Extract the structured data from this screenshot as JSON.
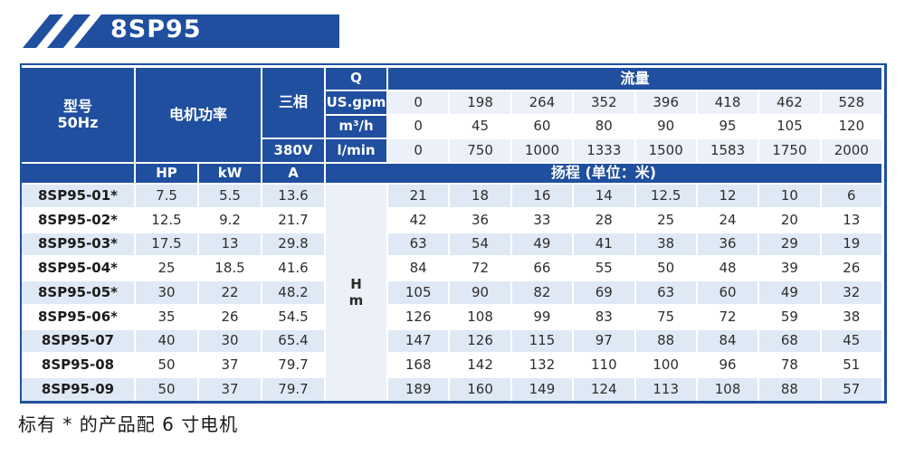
{
  "banner": {
    "title": "8SP95"
  },
  "colors": {
    "primary_blue": "#1f4f9e",
    "light_row": "#dfe9f5",
    "lighter_row": "#ecf1f9",
    "text_dark": "#2e2e2e"
  },
  "table": {
    "header": {
      "model_label": "型号",
      "model_freq": "50Hz",
      "motor_power_label": "电机功率",
      "three_phase_label": "三相",
      "voltage_label": "380V",
      "q_label": "Q",
      "flow_label": "流量",
      "flow_units": [
        "US.gpm",
        "m³/h",
        "l/min"
      ],
      "flow_rows": [
        [
          "0",
          "198",
          "264",
          "352",
          "396",
          "418",
          "462",
          "528"
        ],
        [
          "0",
          "45",
          "60",
          "80",
          "90",
          "95",
          "105",
          "120"
        ],
        [
          "0",
          "750",
          "1000",
          "1333",
          "1500",
          "1583",
          "1750",
          "2000"
        ]
      ],
      "hp_label": "HP",
      "kw_label": "kW",
      "amp_label": "A",
      "head_label": "扬程 (单位：米)"
    },
    "h_column": {
      "line1": "H",
      "line2": "m"
    },
    "rows": [
      {
        "model": "8SP95-01*",
        "hp": "7.5",
        "kw": "5.5",
        "a": "13.6",
        "head": [
          "21",
          "18",
          "16",
          "14",
          "12.5",
          "12",
          "10",
          "6"
        ]
      },
      {
        "model": "8SP95-02*",
        "hp": "12.5",
        "kw": "9.2",
        "a": "21.7",
        "head": [
          "42",
          "36",
          "33",
          "28",
          "25",
          "24",
          "20",
          "13"
        ]
      },
      {
        "model": "8SP95-03*",
        "hp": "17.5",
        "kw": "13",
        "a": "29.8",
        "head": [
          "63",
          "54",
          "49",
          "41",
          "38",
          "36",
          "29",
          "19"
        ]
      },
      {
        "model": "8SP95-04*",
        "hp": "25",
        "kw": "18.5",
        "a": "41.6",
        "head": [
          "84",
          "72",
          "66",
          "55",
          "50",
          "48",
          "39",
          "26"
        ]
      },
      {
        "model": "8SP95-05*",
        "hp": "30",
        "kw": "22",
        "a": "48.2",
        "head": [
          "105",
          "90",
          "82",
          "69",
          "63",
          "60",
          "49",
          "32"
        ]
      },
      {
        "model": "8SP95-06*",
        "hp": "35",
        "kw": "26",
        "a": "54.5",
        "head": [
          "126",
          "108",
          "99",
          "83",
          "75",
          "72",
          "59",
          "38"
        ]
      },
      {
        "model": "8SP95-07",
        "hp": "40",
        "kw": "30",
        "a": "65.4",
        "head": [
          "147",
          "126",
          "115",
          "97",
          "88",
          "84",
          "68",
          "45"
        ]
      },
      {
        "model": "8SP95-08",
        "hp": "50",
        "kw": "37",
        "a": "79.7",
        "head": [
          "168",
          "142",
          "132",
          "110",
          "100",
          "96",
          "78",
          "51"
        ]
      },
      {
        "model": "8SP95-09",
        "hp": "50",
        "kw": "37",
        "a": "79.7",
        "head": [
          "189",
          "160",
          "149",
          "124",
          "113",
          "108",
          "88",
          "57"
        ]
      }
    ]
  },
  "footer": {
    "note": "标有 * 的产品配 6 寸电机"
  }
}
